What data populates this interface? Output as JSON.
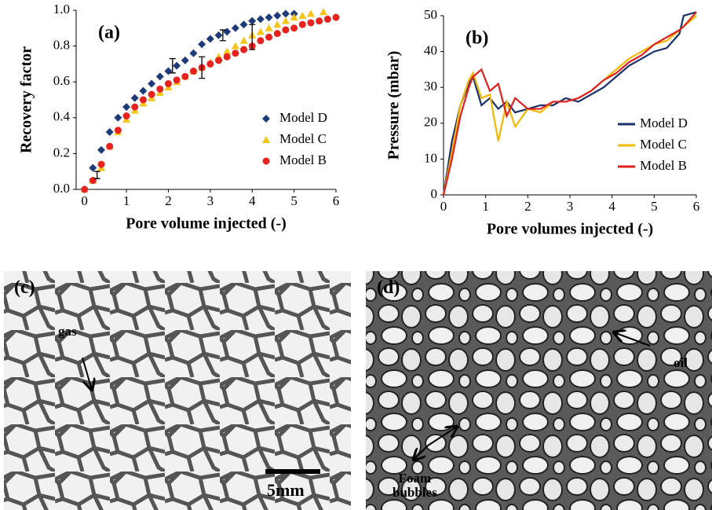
{
  "chart_data": [
    {
      "type": "scatter",
      "label": "(a)",
      "x_label": "Pore volume injected (-)",
      "y_label": "Recovery factor",
      "xlim": [
        -0.2,
        6
      ],
      "xticks": [
        0,
        1,
        2,
        3,
        4,
        5,
        6
      ],
      "ylim": [
        0,
        1
      ],
      "yticks": [
        {
          "value": 0,
          "label": "0.0"
        },
        0.2,
        0.4,
        0.6,
        0.8,
        {
          "value": 1,
          "label": "1.0"
        }
      ],
      "legend": "lower right",
      "series": [
        {
          "name": "Model D",
          "color": "#1f3a78",
          "marker": "diamond",
          "x": [
            0,
            0.2,
            0.4,
            0.6,
            0.8,
            1.0,
            1.2,
            1.4,
            1.6,
            1.8,
            2.0,
            2.2,
            2.4,
            2.6,
            2.8,
            3.0,
            3.2,
            3.4,
            3.6,
            3.8,
            4.0,
            4.2,
            4.4,
            4.6,
            4.8,
            5.0
          ],
          "values": [
            0,
            0.12,
            0.22,
            0.32,
            0.4,
            0.46,
            0.51,
            0.55,
            0.59,
            0.63,
            0.66,
            0.69,
            0.72,
            0.76,
            0.81,
            0.84,
            0.86,
            0.88,
            0.9,
            0.92,
            0.94,
            0.95,
            0.96,
            0.97,
            0.98,
            0.98
          ]
        },
        {
          "name": "Model C",
          "color": "#f5c518",
          "marker": "triangle",
          "x": [
            0,
            0.2,
            0.4,
            0.6,
            0.8,
            1.0,
            1.2,
            1.4,
            1.6,
            1.8,
            2.0,
            2.2,
            2.4,
            2.6,
            2.8,
            3.0,
            3.2,
            3.4,
            3.6,
            3.8,
            4.0,
            4.2,
            4.4,
            4.6,
            4.8,
            5.0,
            5.2,
            5.4,
            5.7
          ],
          "values": [
            0,
            0.05,
            0.12,
            0.24,
            0.32,
            0.39,
            0.44,
            0.48,
            0.51,
            0.54,
            0.57,
            0.6,
            0.63,
            0.66,
            0.68,
            0.71,
            0.74,
            0.77,
            0.8,
            0.83,
            0.86,
            0.88,
            0.9,
            0.92,
            0.94,
            0.96,
            0.97,
            0.98,
            0.99
          ]
        },
        {
          "name": "Model B",
          "color": "#e8231f",
          "marker": "circle",
          "x": [
            0,
            0.2,
            0.4,
            0.6,
            0.8,
            1.0,
            1.2,
            1.4,
            1.6,
            1.8,
            2.0,
            2.2,
            2.4,
            2.6,
            2.8,
            3.0,
            3.2,
            3.4,
            3.6,
            3.8,
            4.0,
            4.2,
            4.4,
            4.6,
            4.8,
            5.0,
            5.2,
            5.4,
            5.6,
            5.8,
            6.0
          ],
          "values": [
            0,
            0.05,
            0.14,
            0.24,
            0.33,
            0.41,
            0.46,
            0.5,
            0.53,
            0.56,
            0.59,
            0.61,
            0.63,
            0.66,
            0.68,
            0.7,
            0.72,
            0.74,
            0.76,
            0.78,
            0.8,
            0.83,
            0.85,
            0.87,
            0.89,
            0.9,
            0.92,
            0.93,
            0.94,
            0.95,
            0.96
          ]
        }
      ],
      "error_bars": [
        {
          "x": 0.3,
          "y": 0.08,
          "err": 0.02
        },
        {
          "x": 2.1,
          "y": 0.69,
          "err": 0.04
        },
        {
          "x": 2.8,
          "y": 0.68,
          "err": 0.06
        },
        {
          "x": 3.3,
          "y": 0.86,
          "err": 0.03
        },
        {
          "x": 4.0,
          "y": 0.85,
          "err": 0.07
        }
      ]
    },
    {
      "type": "line",
      "label": "(b)",
      "x_label": "Pore volumes injected (-)",
      "y_label": "Pressure (mbar)",
      "xlim": [
        0,
        6
      ],
      "xticks": [
        0,
        1,
        2,
        3,
        4,
        5,
        6
      ],
      "ylim": [
        0,
        50
      ],
      "yticks": [
        0,
        10,
        20,
        30,
        40,
        50
      ],
      "legend": "lower right",
      "x": [
        0,
        0.2,
        0.4,
        0.6,
        0.7,
        0.9,
        1.1,
        1.3,
        1.5,
        1.7,
        2.0,
        2.3,
        2.6,
        2.9,
        3.2,
        3.5,
        3.8,
        4.1,
        4.4,
        4.7,
        5.0,
        5.3,
        5.6,
        5.7,
        6.0
      ],
      "series": [
        {
          "name": "Model D",
          "color": "#1a2f6b",
          "values": [
            0,
            15,
            25,
            31,
            33,
            25,
            27,
            24,
            26,
            23,
            24,
            25,
            25,
            27,
            26,
            28,
            30,
            33,
            36,
            38,
            40,
            41,
            45,
            50,
            51
          ]
        },
        {
          "name": "Model C",
          "color": "#f5b800",
          "values": [
            0,
            12,
            25,
            32,
            34,
            27,
            28,
            15,
            26,
            19,
            24,
            23,
            26,
            26,
            27,
            29,
            32,
            35,
            38,
            40,
            42,
            43,
            46,
            47,
            50
          ]
        },
        {
          "name": "Model B",
          "color": "#e0201c",
          "values": [
            0,
            10,
            22,
            30,
            33,
            35,
            29,
            31,
            22,
            27,
            24,
            24,
            26,
            26,
            27,
            29,
            32,
            34,
            37,
            39,
            42,
            44,
            46,
            47,
            51
          ]
        }
      ]
    }
  ],
  "panels": [
    {
      "label": "(c)",
      "annotations": [
        "gas",
        "5mm"
      ]
    },
    {
      "label": "(d)",
      "annotations": [
        "oil",
        "Foam\nbubbles"
      ]
    }
  ]
}
